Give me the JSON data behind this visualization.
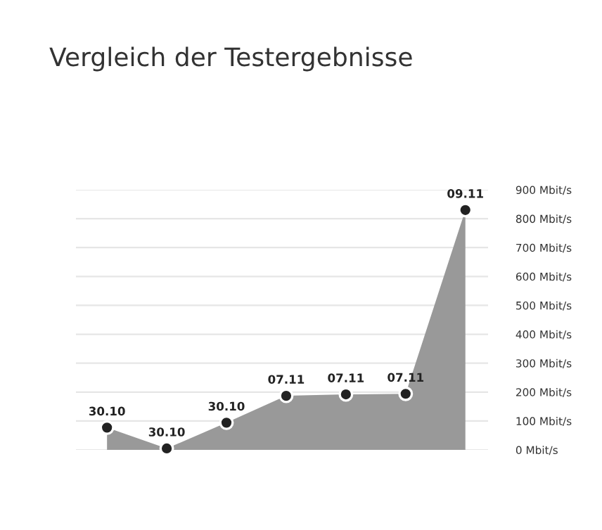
{
  "chart_data": {
    "type": "area",
    "title": "Vergleich der Testergebnisse",
    "categories": [
      "30.10",
      "30.10",
      "30.10",
      "07.11",
      "07.11",
      "07.11",
      "09.11"
    ],
    "series": [
      {
        "color": "#999999",
        "values": [
          77,
          5,
          94,
          187,
          192,
          194,
          830
        ]
      }
    ],
    "ylim": [
      0,
      900
    ],
    "yticks": [
      {
        "value": 0,
        "label": "0 Mbit/s"
      },
      {
        "value": 100,
        "label": "100 Mbit/s"
      },
      {
        "value": 200,
        "label": "200 Mbit/s"
      },
      {
        "value": 300,
        "label": "300 Mbit/s"
      },
      {
        "value": 400,
        "label": "400 Mbit/s"
      },
      {
        "value": 500,
        "label": "500 Mbit/s"
      },
      {
        "value": 600,
        "label": "600 Mbit/s"
      },
      {
        "value": 700,
        "label": "700 Mbit/s"
      },
      {
        "value": 800,
        "label": "800 Mbit/s"
      },
      {
        "value": 900,
        "label": "900 Mbit/s"
      }
    ],
    "grid": "y",
    "marker": "circle",
    "legend": false
  }
}
